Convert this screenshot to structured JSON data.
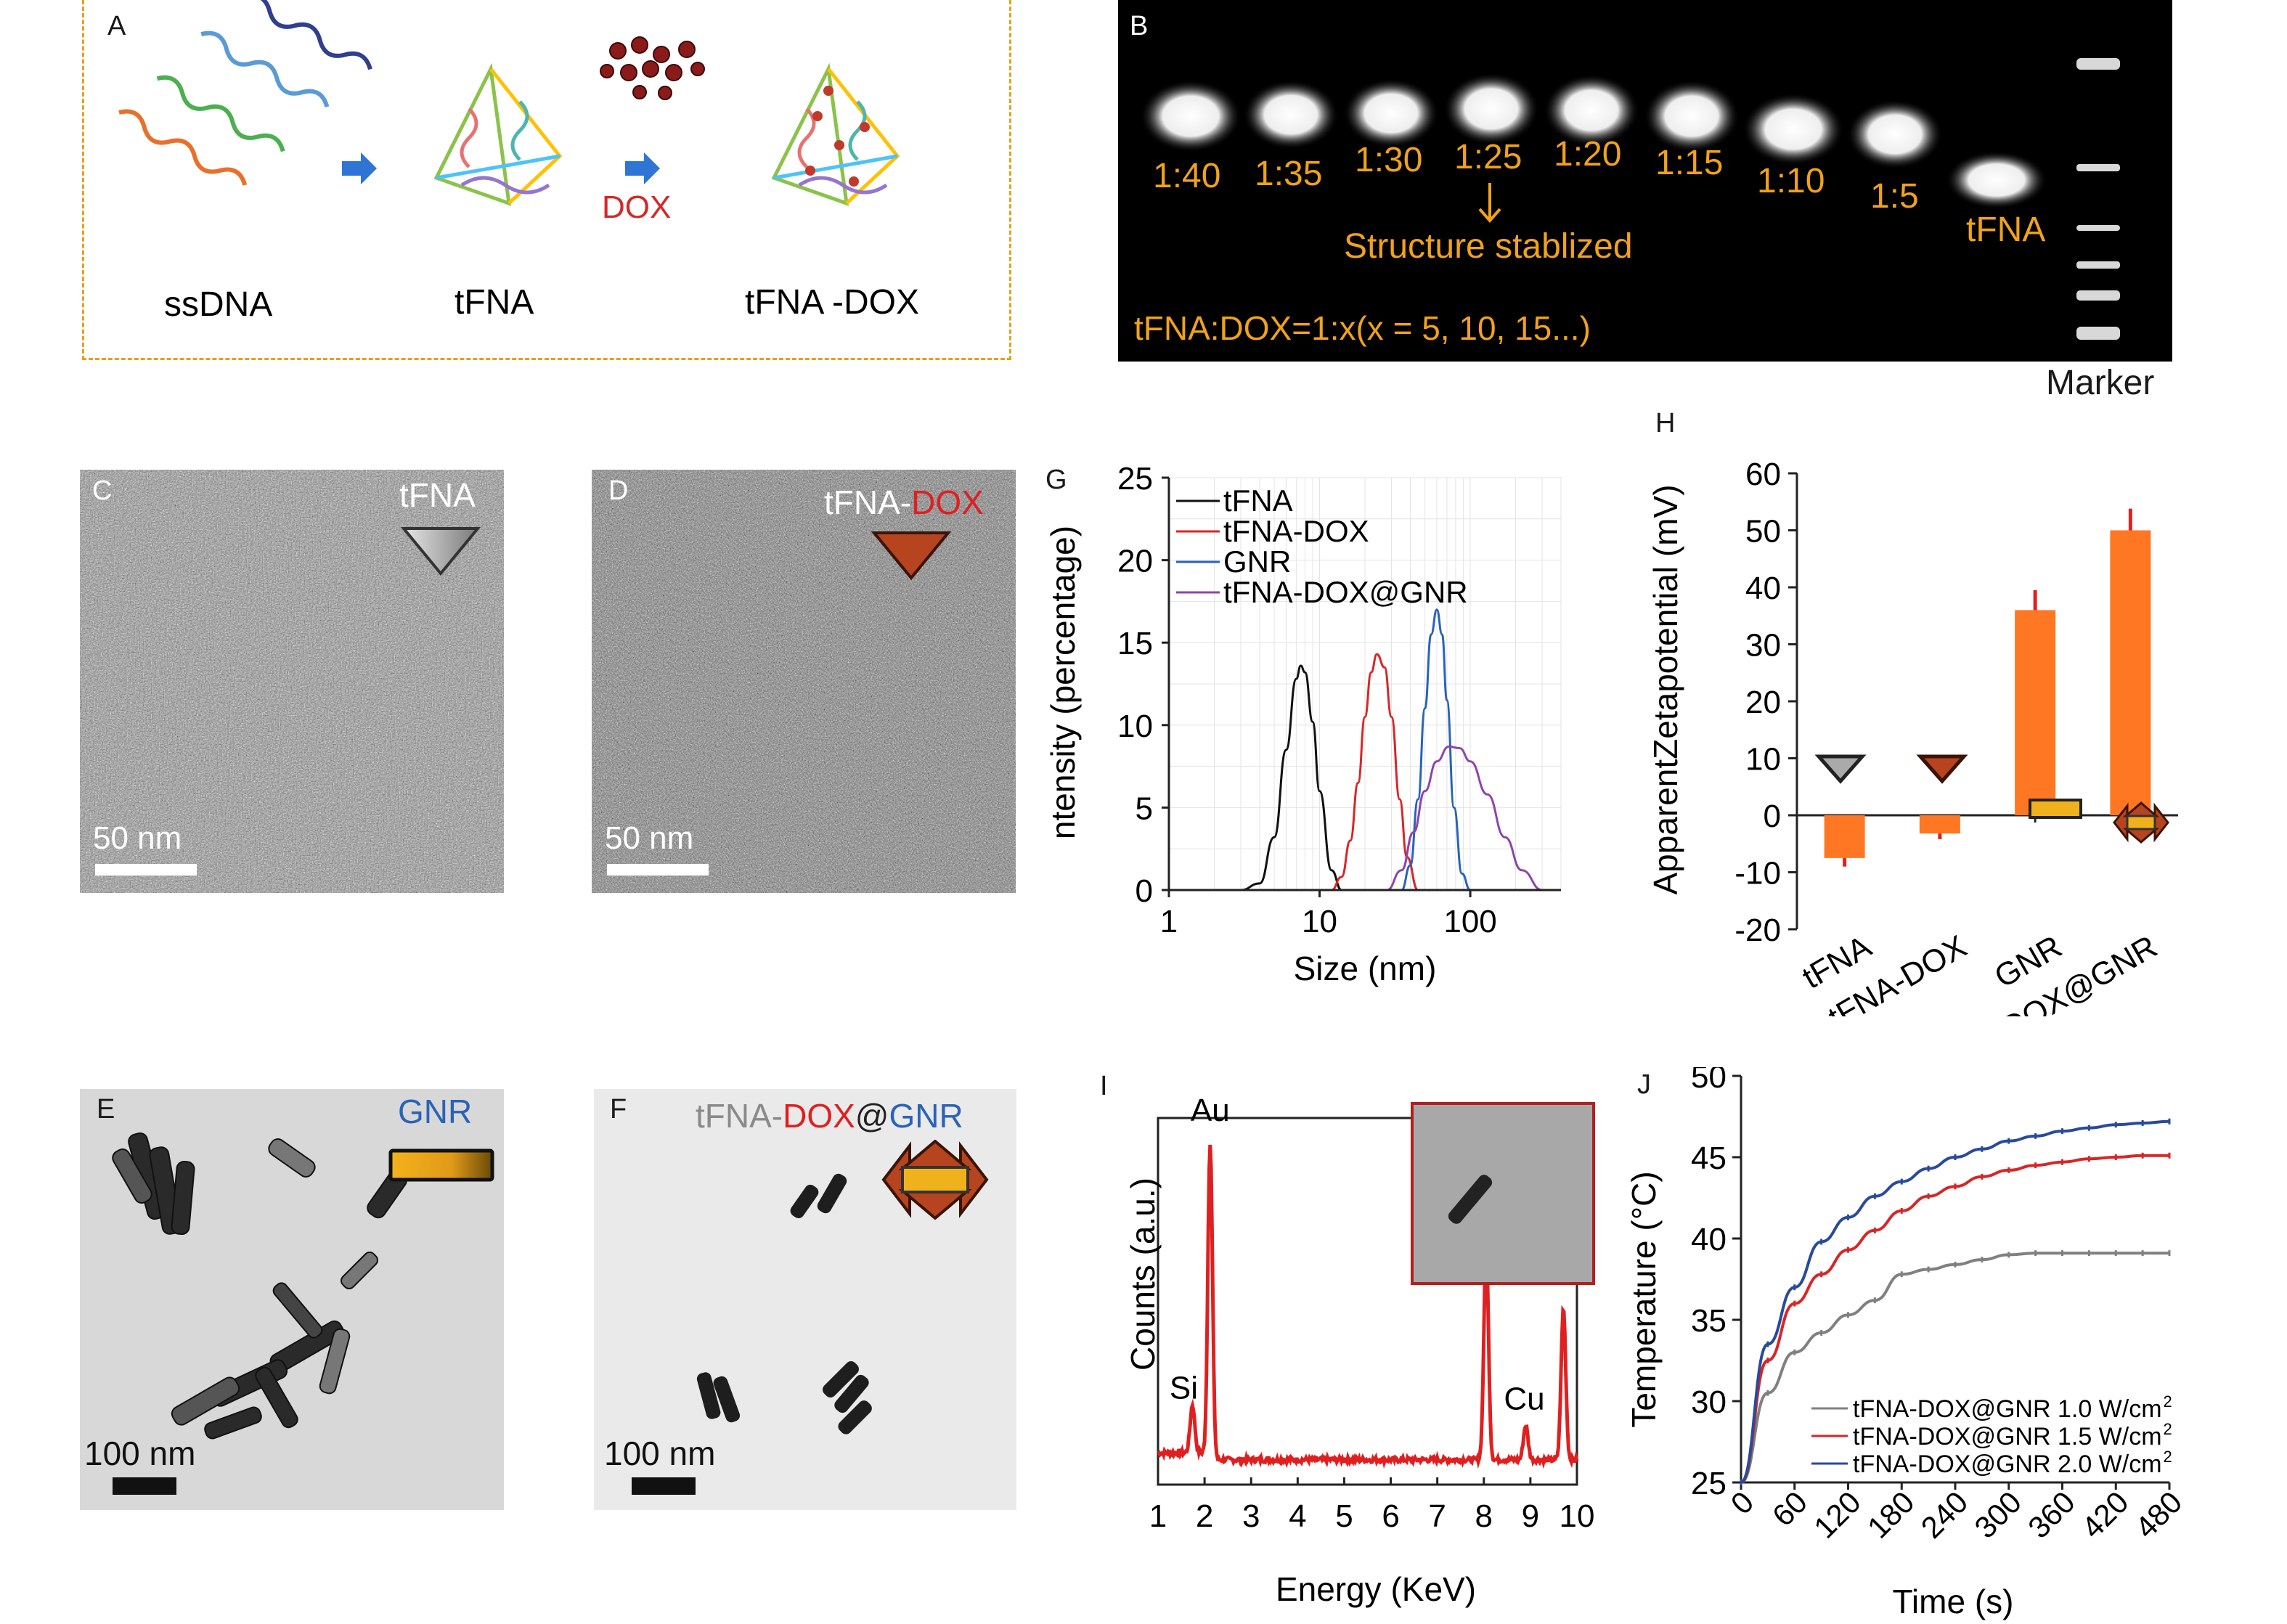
{
  "colors": {
    "orange": "#f39c12",
    "red": "#d62728",
    "blue": "#2a63b8",
    "gold": "#e3a21a",
    "bar": "#ff7722"
  },
  "panelA": {
    "label": "A",
    "ssdna": "ssDNA",
    "tfna": "tFNA",
    "tfna_dox": "tFNA -DOX",
    "dox": "DOX"
  },
  "panelB": {
    "label": "B",
    "ratios": [
      "1:40",
      "1:35",
      "1:30",
      "1:25",
      "1:20",
      "1:15",
      "1:10",
      "1:5"
    ],
    "tfna": "tFNA",
    "structure": "Structure stablized",
    "formula": "tFNA:DOX=1:x(x = 5, 10, 15...)",
    "marker": "Marker"
  },
  "panelC": {
    "label": "C",
    "tag": "tFNA",
    "scale": "50 nm"
  },
  "panelD": {
    "label": "D",
    "tag_a": "tFNA-",
    "tag_b": "DOX",
    "scale": "50 nm"
  },
  "panelE": {
    "label": "E",
    "tag": "GNR",
    "scale": "100 nm"
  },
  "panelF": {
    "label": "F",
    "tag_a": "tFNA-",
    "tag_b": "DOX",
    "tag_c": "@",
    "tag_d": "GNR",
    "scale": "100 nm"
  },
  "chart_data": [
    {
      "panel": "G",
      "type": "line",
      "xlabel": "Size (nm)",
      "ylabel": "ntensity (percentage)",
      "xscale": "log",
      "xlim": [
        1,
        400
      ],
      "ylim": [
        0,
        25
      ],
      "xticks": [
        "1",
        "10",
        "100"
      ],
      "yticks": [
        "0",
        "5",
        "10",
        "15",
        "20",
        "25"
      ],
      "legend": "top-left",
      "series": [
        {
          "name": "tFNA",
          "color": "#111111",
          "x": [
            3,
            4,
            5,
            6,
            7,
            7.5,
            8,
            9,
            10,
            12,
            14
          ],
          "y": [
            0,
            0.4,
            3.2,
            8.5,
            12.8,
            13.6,
            13.2,
            10.2,
            6,
            1.2,
            0
          ]
        },
        {
          "name": "tFNA-DOX",
          "color": "#d62728",
          "x": [
            12,
            14,
            16,
            18,
            20,
            22,
            24,
            27,
            30,
            34,
            38,
            45
          ],
          "y": [
            0,
            0.8,
            3,
            6.5,
            10.5,
            13.2,
            14.3,
            13.5,
            10.5,
            5.5,
            2,
            0
          ]
        },
        {
          "name": "GNR",
          "color": "#2a63b8",
          "x": [
            35,
            40,
            45,
            50,
            55,
            60,
            65,
            70,
            78,
            88,
            100
          ],
          "y": [
            0,
            1.5,
            5.5,
            11,
            15.5,
            17,
            15.5,
            11.5,
            5,
            1,
            0
          ]
        },
        {
          "name": "tFNA-DOX@GNR",
          "color": "#8e44ad",
          "x": [
            28,
            35,
            42,
            50,
            60,
            72,
            85,
            100,
            130,
            170,
            220,
            300
          ],
          "y": [
            0,
            1.2,
            3.5,
            6,
            7.8,
            8.7,
            8.6,
            7.8,
            5.8,
            3.2,
            1.2,
            0
          ]
        }
      ]
    },
    {
      "panel": "H",
      "type": "bar",
      "ylabel": "ApparentZetapotential (mV)",
      "ylim": [
        -20,
        60
      ],
      "yticks": [
        "60",
        "50",
        "40",
        "30",
        "20",
        "10",
        "0",
        "-10",
        "-20"
      ],
      "categories": [
        "tFNA",
        "tFNA-DOX",
        "GNR",
        "tFNA-DOX@GNR"
      ],
      "values": [
        -7.5,
        -3.2,
        36,
        50
      ],
      "errors": [
        1.5,
        1,
        3.5,
        3.8
      ]
    },
    {
      "panel": "I",
      "type": "line",
      "xlabel": "Energy (KeV)",
      "ylabel": "Counts (a.u.)",
      "xlim": [
        1,
        10
      ],
      "xticks": [
        "1",
        "2",
        "3",
        "4",
        "5",
        "6",
        "7",
        "8",
        "9",
        "10"
      ],
      "peaks": [
        {
          "label": "Si",
          "x": 1.74,
          "h": 0.14
        },
        {
          "label": "Au",
          "x": 2.12,
          "h": 0.92
        },
        {
          "label": "Cu",
          "x": 8.05,
          "h": 0.62
        },
        {
          "label": "Cu",
          "x": 8.9,
          "h": 0.1
        },
        {
          "label": "Au",
          "x": 9.71,
          "h": 0.44
        }
      ]
    },
    {
      "panel": "J",
      "type": "line",
      "xlabel": "Time (s)",
      "ylabel": "Temperature (°C)",
      "xlim": [
        0,
        480
      ],
      "ylim": [
        25,
        50
      ],
      "xticks": [
        "0",
        "60",
        "120",
        "180",
        "240",
        "300",
        "360",
        "420",
        "480"
      ],
      "yticks": [
        "50",
        "45",
        "40",
        "35",
        "30",
        "25"
      ],
      "legend": "bottom-right",
      "series": [
        {
          "name": "tFNA-DOX@GNR 1.0 W/cm",
          "sup": "2",
          "color": "#808080",
          "x": [
            0,
            30,
            60,
            90,
            120,
            150,
            180,
            210,
            240,
            270,
            300,
            330,
            360,
            390,
            420,
            450,
            480
          ],
          "y": [
            25,
            30.5,
            33,
            34.2,
            35.3,
            36.2,
            37.8,
            38.1,
            38.4,
            38.7,
            39,
            39.1,
            39.1,
            39.1,
            39.1,
            39.1,
            39.1
          ]
        },
        {
          "name": "tFNA-DOX@GNR 1.5 W/cm",
          "sup": "2",
          "color": "#d62728",
          "x": [
            0,
            30,
            60,
            90,
            120,
            150,
            180,
            210,
            240,
            270,
            300,
            330,
            360,
            390,
            420,
            450,
            480
          ],
          "y": [
            25,
            32.5,
            36,
            37.8,
            39.3,
            40.5,
            41.7,
            42.6,
            43.2,
            43.8,
            44.2,
            44.5,
            44.7,
            44.9,
            45,
            45.1,
            45.1
          ]
        },
        {
          "name": "tFNA-DOX@GNR 2.0 W/cm",
          "sup": "2",
          "color": "#2a4a9a",
          "x": [
            0,
            30,
            60,
            90,
            120,
            150,
            180,
            210,
            240,
            270,
            300,
            330,
            360,
            390,
            420,
            450,
            480
          ],
          "y": [
            25,
            33.5,
            37,
            39.8,
            41.3,
            42.6,
            43.5,
            44.3,
            45,
            45.5,
            46,
            46.3,
            46.6,
            46.8,
            47,
            47.1,
            47.2
          ]
        }
      ]
    }
  ]
}
